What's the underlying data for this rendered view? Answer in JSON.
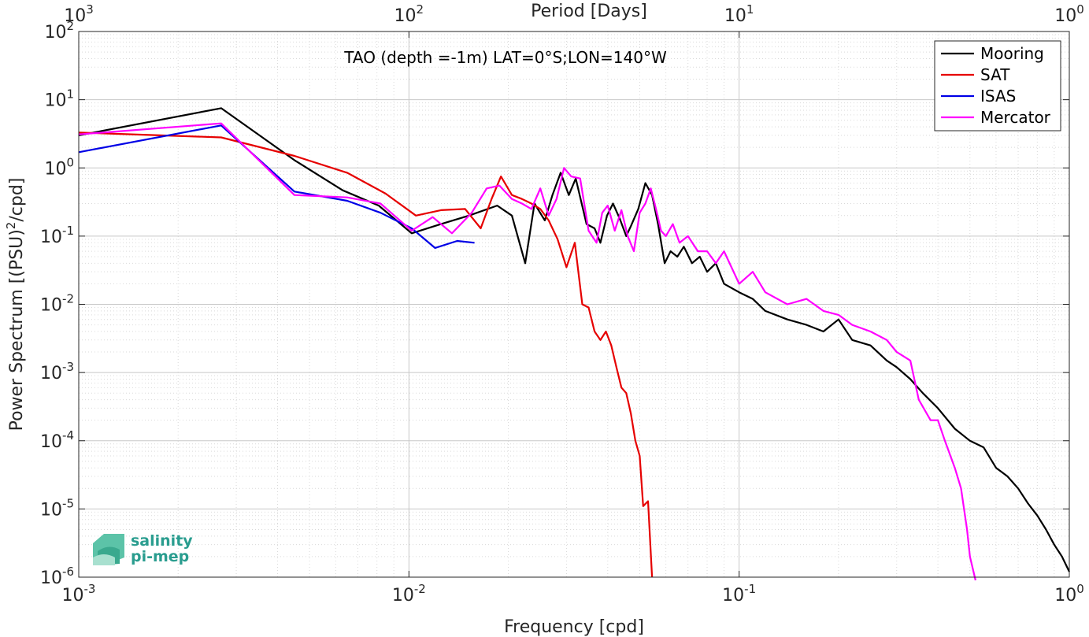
{
  "chart_data": {
    "type": "line",
    "title": "TAO (depth =-1m) LAT=0°S;LON=140°W",
    "xlabel": "Frequency [cpd]",
    "ylabel_parts": [
      "Power Spectrum [(PSU)",
      "2",
      "/cpd]"
    ],
    "top_xlabel": "Period [Days]",
    "xscale": "log",
    "yscale": "log",
    "xlim": [
      0.001,
      1
    ],
    "ylim": [
      1e-06,
      100
    ],
    "grid": true,
    "legend_position": "top-right",
    "x_ticks": [
      {
        "value": 0.001,
        "base": "10",
        "exp": "-3"
      },
      {
        "value": 0.01,
        "base": "10",
        "exp": "-2"
      },
      {
        "value": 0.1,
        "base": "10",
        "exp": "-1"
      },
      {
        "value": 1,
        "base": "10",
        "exp": "0"
      }
    ],
    "y_ticks": [
      {
        "value": 1e-06,
        "base": "10",
        "exp": "-6"
      },
      {
        "value": 1e-05,
        "base": "10",
        "exp": "-5"
      },
      {
        "value": 0.0001,
        "base": "10",
        "exp": "-4"
      },
      {
        "value": 0.001,
        "base": "10",
        "exp": "-3"
      },
      {
        "value": 0.01,
        "base": "10",
        "exp": "-2"
      },
      {
        "value": 0.1,
        "base": "10",
        "exp": "-1"
      },
      {
        "value": 1,
        "base": "10",
        "exp": "0"
      },
      {
        "value": 10,
        "base": "10",
        "exp": "1"
      },
      {
        "value": 100,
        "base": "10",
        "exp": "2"
      }
    ],
    "top_ticks": [
      {
        "value": 0.001,
        "base": "10",
        "exp": "3"
      },
      {
        "value": 0.01,
        "base": "10",
        "exp": "2"
      },
      {
        "value": 0.1,
        "base": "10",
        "exp": "1"
      },
      {
        "value": 1,
        "base": "10",
        "exp": "0"
      }
    ],
    "series": [
      {
        "name": "Mooring",
        "color": "#000000",
        "x": [
          0.001,
          0.0027,
          0.0045,
          0.0063,
          0.0081,
          0.0102,
          0.0125,
          0.0152,
          0.0185,
          0.0205,
          0.0225,
          0.024,
          0.0258,
          0.0272,
          0.0288,
          0.0305,
          0.032,
          0.0345,
          0.0365,
          0.038,
          0.0398,
          0.0415,
          0.0435,
          0.0455,
          0.047,
          0.0495,
          0.052,
          0.0545,
          0.0568,
          0.0595,
          0.062,
          0.065,
          0.068,
          0.072,
          0.076,
          0.08,
          0.085,
          0.09,
          0.1,
          0.11,
          0.12,
          0.14,
          0.16,
          0.18,
          0.2,
          0.22,
          0.25,
          0.28,
          0.3,
          0.33,
          0.36,
          0.4,
          0.45,
          0.5,
          0.55,
          0.6,
          0.65,
          0.7,
          0.75,
          0.8,
          0.85,
          0.9,
          0.95,
          1.0
        ],
        "values": [
          3.0,
          7.5,
          1.3,
          0.47,
          0.28,
          0.11,
          0.15,
          0.2,
          0.28,
          0.2,
          0.04,
          0.3,
          0.17,
          0.4,
          0.85,
          0.4,
          0.7,
          0.15,
          0.13,
          0.08,
          0.2,
          0.3,
          0.18,
          0.1,
          0.14,
          0.25,
          0.6,
          0.4,
          0.15,
          0.04,
          0.06,
          0.05,
          0.07,
          0.04,
          0.05,
          0.03,
          0.04,
          0.02,
          0.015,
          0.012,
          0.008,
          0.006,
          0.005,
          0.004,
          0.006,
          0.003,
          0.0025,
          0.0015,
          0.0012,
          0.0008,
          0.0005,
          0.0003,
          0.00015,
          0.0001,
          8e-05,
          4e-05,
          3e-05,
          2e-05,
          1.2e-05,
          8e-06,
          5e-06,
          3e-06,
          2e-06,
          1.2e-06
        ]
      },
      {
        "name": "SAT",
        "color": "#e60000",
        "x": [
          0.001,
          0.0027,
          0.0045,
          0.0065,
          0.0085,
          0.0105,
          0.0125,
          0.0148,
          0.0165,
          0.0178,
          0.019,
          0.0205,
          0.022,
          0.0235,
          0.025,
          0.0265,
          0.0282,
          0.03,
          0.0318,
          0.0335,
          0.035,
          0.0365,
          0.038,
          0.0395,
          0.041,
          0.0425,
          0.044,
          0.0455,
          0.047,
          0.0485,
          0.05,
          0.0512,
          0.053,
          0.0545
        ],
        "values": [
          3.3,
          2.8,
          1.5,
          0.85,
          0.42,
          0.2,
          0.24,
          0.25,
          0.13,
          0.35,
          0.75,
          0.4,
          0.35,
          0.3,
          0.25,
          0.17,
          0.09,
          0.035,
          0.08,
          0.01,
          0.009,
          0.004,
          0.003,
          0.004,
          0.0025,
          0.0012,
          0.0006,
          0.0005,
          0.00025,
          0.0001,
          6e-05,
          1.1e-05,
          1.3e-05,
          1e-06
        ]
      },
      {
        "name": "ISAS",
        "color": "#0000e6",
        "x": [
          0.001,
          0.0027,
          0.0045,
          0.0065,
          0.0082,
          0.0102,
          0.012,
          0.014,
          0.0158
        ],
        "values": [
          1.7,
          4.2,
          0.45,
          0.33,
          0.22,
          0.13,
          0.067,
          0.085,
          0.08
        ]
      },
      {
        "name": "Mercator",
        "color": "#ff00ff",
        "x": [
          0.001,
          0.0027,
          0.0045,
          0.0065,
          0.0082,
          0.0102,
          0.0118,
          0.0135,
          0.0155,
          0.0172,
          0.0188,
          0.0205,
          0.022,
          0.0235,
          0.025,
          0.0265,
          0.028,
          0.0295,
          0.031,
          0.033,
          0.035,
          0.037,
          0.0385,
          0.04,
          0.042,
          0.044,
          0.046,
          0.048,
          0.05,
          0.052,
          0.054,
          0.056,
          0.058,
          0.06,
          0.063,
          0.066,
          0.07,
          0.075,
          0.08,
          0.085,
          0.09,
          0.1,
          0.11,
          0.12,
          0.14,
          0.16,
          0.18,
          0.2,
          0.22,
          0.25,
          0.28,
          0.3,
          0.33,
          0.35,
          0.38,
          0.4,
          0.42,
          0.45,
          0.47,
          0.49,
          0.5,
          0.52
        ],
        "values": [
          3.1,
          4.5,
          0.4,
          0.37,
          0.3,
          0.12,
          0.19,
          0.11,
          0.22,
          0.5,
          0.55,
          0.35,
          0.3,
          0.25,
          0.5,
          0.2,
          0.35,
          1.0,
          0.75,
          0.7,
          0.12,
          0.08,
          0.22,
          0.28,
          0.12,
          0.24,
          0.1,
          0.06,
          0.22,
          0.3,
          0.5,
          0.25,
          0.12,
          0.1,
          0.15,
          0.08,
          0.1,
          0.06,
          0.06,
          0.04,
          0.06,
          0.02,
          0.03,
          0.015,
          0.01,
          0.012,
          0.008,
          0.007,
          0.005,
          0.004,
          0.003,
          0.002,
          0.0015,
          0.0004,
          0.0002,
          0.0002,
          0.0001,
          4e-05,
          2e-05,
          5e-06,
          2e-06,
          9e-07
        ]
      }
    ]
  },
  "logo": {
    "line1": "salinity",
    "line2": "pi-mep"
  }
}
